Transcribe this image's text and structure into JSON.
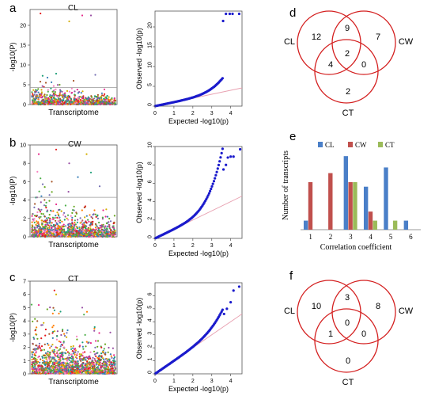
{
  "panels": {
    "a": {
      "letter": "a",
      "title": "CL",
      "manhattan_xlabel": "Transcriptome",
      "manhattan_ylabel": "-log10(P)",
      "qq_xlabel": "Expected -log10(p)",
      "qq_ylabel": "Observed -log10(p)"
    },
    "b": {
      "letter": "b",
      "title": "CW",
      "manhattan_xlabel": "Transcriptome",
      "manhattan_ylabel": "-log10(P)",
      "qq_xlabel": "Expected -log10(p)",
      "qq_ylabel": "Observed -log10(p)"
    },
    "c": {
      "letter": "c",
      "title": "CT",
      "manhattan_xlabel": "Transcriptome",
      "manhattan_ylabel": "-log10(P)",
      "qq_xlabel": "Expected -log10(p)",
      "qq_ylabel": "Observed -log10(p)"
    },
    "d": {
      "letter": "d"
    },
    "e": {
      "letter": "e"
    },
    "f": {
      "letter": "f"
    }
  },
  "colors": {
    "qq_points": "#1a1acc",
    "qq_line": "#e8a0b0",
    "venn_circle": "#d42020",
    "cl_bar": "#4a7fc8",
    "cw_bar": "#c0504d",
    "ct_bar": "#9bbb59",
    "threshold_line": "#999999"
  },
  "chart_data": [
    {
      "id": "a-manhattan",
      "type": "scatter",
      "xlabel": "Transcriptome",
      "ylabel": "-log10(P)",
      "yticks": [
        0,
        5,
        10,
        15,
        20
      ],
      "ylim": [
        0,
        24
      ],
      "threshold": 4.3,
      "grid": false
    },
    {
      "id": "a-qq",
      "type": "scatter",
      "xlabel": "Expected -log10(p)",
      "ylabel": "Observed -log10(p)",
      "xticks": [
        0,
        1,
        2,
        3,
        4
      ],
      "yticks": [
        0,
        5,
        10,
        15,
        20
      ],
      "xlim": [
        0,
        4.6
      ],
      "ylim": [
        0,
        24
      ],
      "reference_line": {
        "x": [
          0,
          4.6
        ],
        "y": [
          0,
          4.6
        ]
      }
    },
    {
      "id": "b-manhattan",
      "type": "scatter",
      "xlabel": "Transcriptome",
      "ylabel": "-log10(P)",
      "yticks": [
        0,
        2,
        4,
        6,
        8,
        10
      ],
      "ylim": [
        0,
        10
      ],
      "threshold": 4.3,
      "grid": false
    },
    {
      "id": "b-qq",
      "type": "scatter",
      "xlabel": "Expected -log10(p)",
      "ylabel": "Observed -log10(p)",
      "xticks": [
        0,
        1,
        2,
        3,
        4
      ],
      "yticks": [
        0,
        2,
        4,
        6,
        8,
        10
      ],
      "xlim": [
        0,
        4.6
      ],
      "ylim": [
        0,
        10
      ],
      "reference_line": {
        "x": [
          0,
          4.6
        ],
        "y": [
          0,
          4.6
        ]
      }
    },
    {
      "id": "c-manhattan",
      "type": "scatter",
      "xlabel": "Transcriptome",
      "ylabel": "-log10(P)",
      "yticks": [
        0,
        1,
        2,
        3,
        4,
        5,
        6,
        7
      ],
      "ylim": [
        0,
        7
      ],
      "threshold": 4.3,
      "grid": false
    },
    {
      "id": "c-qq",
      "type": "scatter",
      "xlabel": "Expected -log10(p)",
      "ylabel": "Observed -log10(p)",
      "xticks": [
        0,
        1,
        2,
        3,
        4
      ],
      "yticks": [
        0,
        1,
        2,
        3,
        4,
        5,
        6
      ],
      "xlim": [
        0,
        4.6
      ],
      "ylim": [
        0,
        7
      ],
      "reference_line": {
        "x": [
          0,
          4.6
        ],
        "y": [
          0,
          4.6
        ]
      }
    },
    {
      "id": "d-venn",
      "type": "venn",
      "sets": [
        "CL",
        "CW",
        "CT"
      ],
      "regions": {
        "CL_only": "12",
        "CW_only": "7",
        "CT_only": "2",
        "CL_CW": "9",
        "CL_CT": "4",
        "CW_CT": "0",
        "CL_CW_CT": "2"
      }
    },
    {
      "id": "e-bar",
      "type": "bar",
      "xlabel": "Correlation coefficient",
      "ylabel": "Number of  transcripts",
      "categories": [
        "1",
        "2",
        "3",
        "4",
        "5",
        "6"
      ],
      "series": [
        {
          "name": "CL",
          "values": [
            0.8,
            0,
            6.5,
            3.8,
            5.5,
            0.8
          ]
        },
        {
          "name": "CW",
          "values": [
            4.2,
            5.0,
            4.2,
            1.6,
            0,
            0
          ]
        },
        {
          "name": "CT",
          "values": [
            0,
            0,
            4.2,
            0.8,
            0.8,
            0
          ]
        }
      ],
      "ylim": [
        0,
        7
      ],
      "legend": "top"
    },
    {
      "id": "f-venn",
      "type": "venn",
      "sets": [
        "CL",
        "CW",
        "CT"
      ],
      "regions": {
        "CL_only": "10",
        "CW_only": "8",
        "CT_only": "0",
        "CL_CW": "3",
        "CL_CT": "1",
        "CW_CT": "0",
        "CL_CW_CT": "0"
      }
    }
  ]
}
